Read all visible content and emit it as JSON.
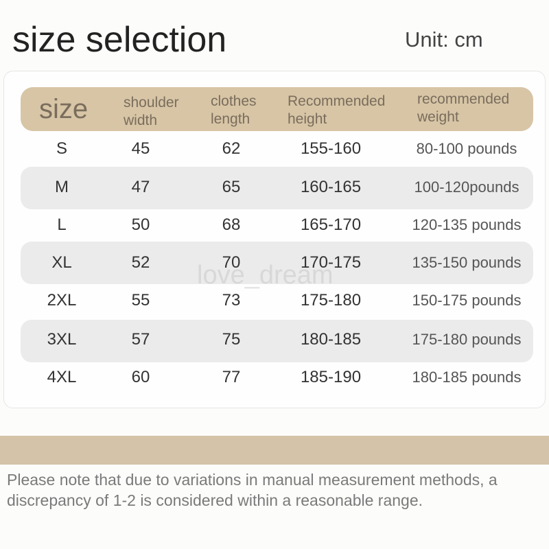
{
  "title": "size selection",
  "unit": "Unit: cm",
  "watermark": "love_dream",
  "colors": {
    "header": "#d7c5a6",
    "band": "#ebebeb",
    "stripe": "#d4c3a8"
  },
  "table": {
    "headers": [
      "size",
      "shoulder width",
      "clothes length",
      "Recommended height",
      "recommended weight"
    ],
    "rows": [
      [
        "S",
        "45",
        "62",
        "155-160",
        "80-100 pounds"
      ],
      [
        "M",
        "47",
        "65",
        "160-165",
        "100-120pounds"
      ],
      [
        "L",
        "50",
        "68",
        "165-170",
        "120-135 pounds"
      ],
      [
        "XL",
        "52",
        "70",
        "170-175",
        "135-150 pounds"
      ],
      [
        "2XL",
        "55",
        "73",
        "175-180",
        "150-175 pounds"
      ],
      [
        "3XL",
        "57",
        "75",
        "180-185",
        "175-180 pounds"
      ],
      [
        "4XL",
        "60",
        "77",
        "185-190",
        "180-185 pounds"
      ]
    ]
  },
  "note": "Please note that due to variations in manual measurement methods, a discrepancy of 1-2 is considered within a reasonable range."
}
